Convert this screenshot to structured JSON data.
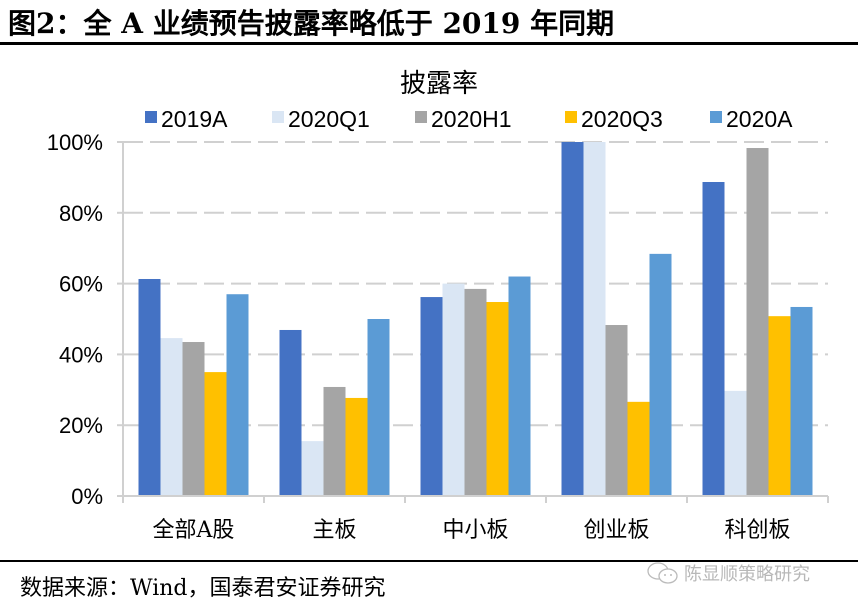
{
  "figure": {
    "title": "图2：全 A 业绩预告披露率略低于 2019 年同期",
    "source": "数据来源：Wind，国泰君安证券研究",
    "watermark": "陈显顺策略研究",
    "watermark_icon": "wechat-icon"
  },
  "chart_data": {
    "type": "bar",
    "title": "披露率",
    "xlabel": "",
    "ylabel": "",
    "ylim": [
      0,
      100
    ],
    "yticks": [
      0,
      20,
      40,
      60,
      80,
      100
    ],
    "ytick_labels": [
      "0%",
      "20%",
      "40%",
      "60%",
      "80%",
      "100%"
    ],
    "grid": "horizontal-dashed",
    "legend_position": "top",
    "categories": [
      "全部A股",
      "主板",
      "中小板",
      "创业板",
      "科创板"
    ],
    "series": [
      {
        "name": "2019A",
        "color": "#4472C4",
        "values": [
          61.3,
          46.9,
          56.2,
          100,
          88.7
        ]
      },
      {
        "name": "2020Q1",
        "color": "#DAE6F4",
        "values": [
          44.6,
          15.5,
          60.0,
          100,
          29.7
        ]
      },
      {
        "name": "2020H1",
        "color": "#A5A5A5",
        "values": [
          43.5,
          30.8,
          58.5,
          48.3,
          98.3
        ]
      },
      {
        "name": "2020Q3",
        "color": "#FFC000",
        "values": [
          35.0,
          27.7,
          54.8,
          26.6,
          50.8
        ]
      },
      {
        "name": "2020A",
        "color": "#5B9BD5",
        "values": [
          57.0,
          50.0,
          62.0,
          68.4,
          53.4
        ]
      }
    ]
  }
}
